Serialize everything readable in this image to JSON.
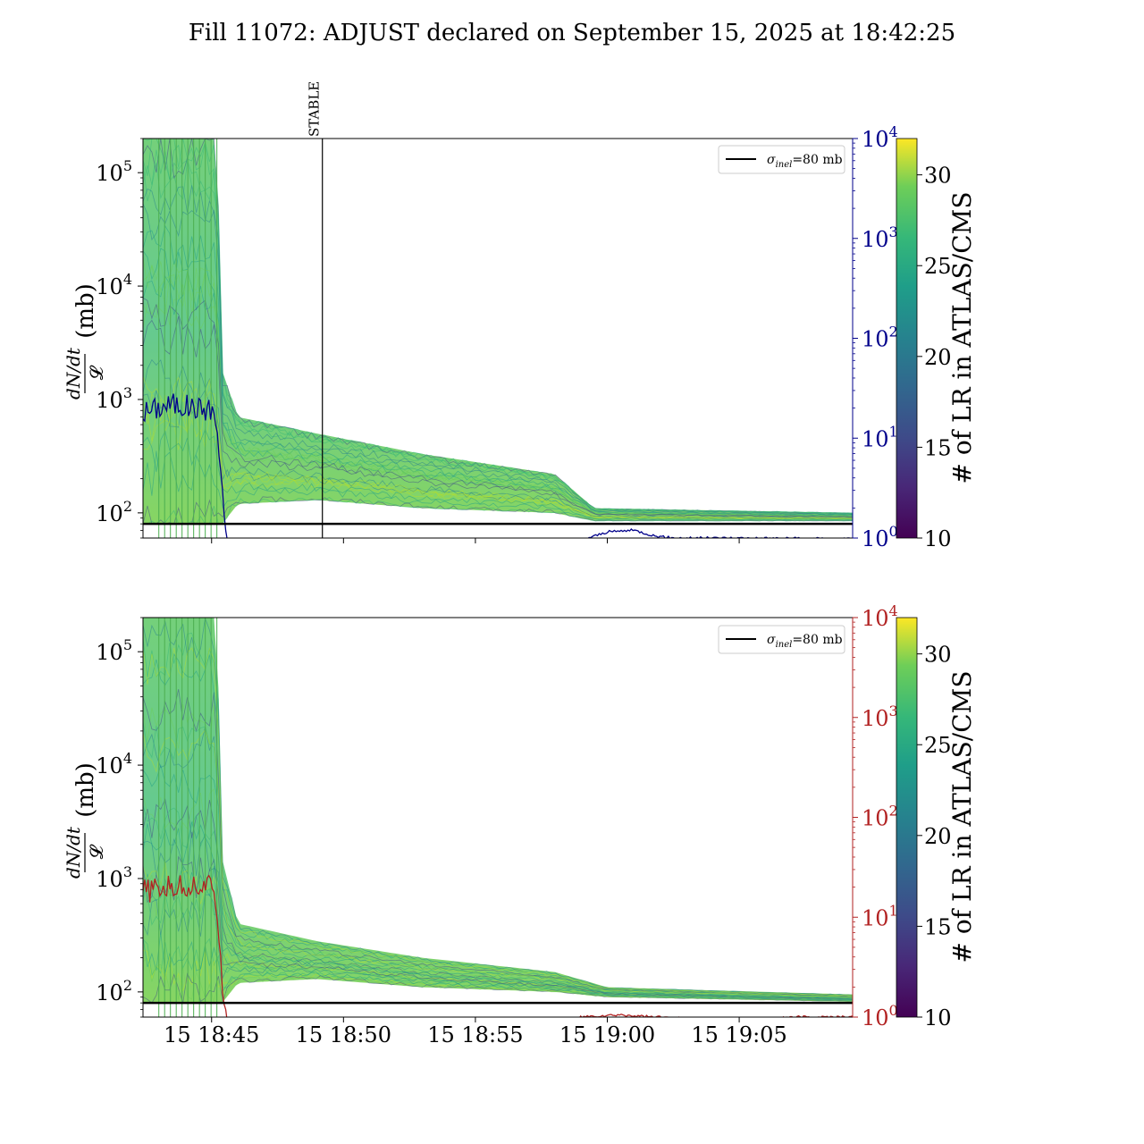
{
  "title": "Fill 11072: ADJUST declared on September 15, 2025 at 18:42:25",
  "chart_data": [
    {
      "type": "line",
      "panel": "top",
      "ylabel": "dN/dt / 𝓛 (mb)",
      "ylabel_parts": {
        "numerator": "dN/dt",
        "denominator": "𝓛",
        "unit": "(mb)"
      },
      "yscale": "log",
      "ylim": [
        60,
        200000
      ],
      "yticks": [
        {
          "label": "10",
          "exp": "2",
          "value": 100
        },
        {
          "label": "10",
          "exp": "3",
          "value": 1000
        },
        {
          "label": "10",
          "exp": "4",
          "value": 10000
        },
        {
          "label": "10",
          "exp": "5",
          "value": 100000
        }
      ],
      "xlim_minutes_from_1845": [
        -2.6,
        24.3
      ],
      "xticks": [],
      "right_axis": {
        "color": "#00008b",
        "yscale": "log",
        "ylim": [
          1,
          10000
        ],
        "yticks": [
          {
            "label": "10",
            "exp": "0"
          },
          {
            "label": "10",
            "exp": "1"
          },
          {
            "label": "10",
            "exp": "2"
          },
          {
            "label": "10",
            "exp": "3"
          },
          {
            "label": "10",
            "exp": "4"
          }
        ]
      },
      "reference_line": {
        "value": 80,
        "color": "#000000"
      },
      "legend": {
        "placement": "top-right",
        "label_sigma": "σ",
        "label_sub": "inel",
        "label_rest": "=80 mb"
      },
      "annotation": {
        "text": "STABLE",
        "x_minutes": 4.2
      },
      "colorbar": {
        "label": "# of LR in ATLAS/CMS",
        "range": [
          10,
          32
        ],
        "ticks": [
          "10",
          "15",
          "20",
          "25",
          "30"
        ],
        "colormap": "viridis"
      },
      "right_series": [
        {
          "t": -2.6,
          "v": 18
        },
        {
          "t": -1.5,
          "v": 22
        },
        {
          "t": -0.5,
          "v": 20
        },
        {
          "t": 0.1,
          "v": 19
        },
        {
          "t": 0.4,
          "v": 3.5
        },
        {
          "t": 0.5,
          "v": 1.4
        },
        {
          "t": 0.6,
          "v": 0.85
        },
        {
          "t": 1.5,
          "v": 0.8
        },
        {
          "t": 2.5,
          "v": 0.72
        },
        {
          "t": 3.5,
          "v": 0.7
        },
        {
          "t": 4.0,
          "v": 0.58
        },
        {
          "t": 4.5,
          "v": 0.5
        },
        {
          "t": 6.0,
          "v": 0.48
        },
        {
          "t": 7.5,
          "v": 0.45
        },
        {
          "t": 9.0,
          "v": 0.55
        },
        {
          "t": 10.0,
          "v": 0.58
        },
        {
          "t": 11.0,
          "v": 0.6
        },
        {
          "t": 12.0,
          "v": 0.7
        },
        {
          "t": 13.0,
          "v": 0.8
        },
        {
          "t": 14.0,
          "v": 0.95
        },
        {
          "t": 15.0,
          "v": 1.15
        },
        {
          "t": 16.0,
          "v": 1.2
        },
        {
          "t": 16.8,
          "v": 1.05
        },
        {
          "t": 17.5,
          "v": 1.0
        },
        {
          "t": 20.0,
          "v": 1.0
        },
        {
          "t": 24.3,
          "v": 0.98
        }
      ],
      "series_low_points": [
        {
          "t": -2.6,
          "v": 80
        },
        {
          "t": 0.4,
          "v": 80
        },
        {
          "t": 1.0,
          "v": 120
        },
        {
          "t": 4.0,
          "v": 130
        },
        {
          "t": 8.0,
          "v": 110
        },
        {
          "t": 13.0,
          "v": 100
        },
        {
          "t": 14.5,
          "v": 85
        },
        {
          "t": 24.3,
          "v": 85
        }
      ],
      "series_high_points": [
        {
          "t": -2.6,
          "v": 200000
        },
        {
          "t": 0.2,
          "v": 200000
        },
        {
          "t": 0.4,
          "v": 1800
        },
        {
          "t": 1.0,
          "v": 700
        },
        {
          "t": 4.0,
          "v": 500
        },
        {
          "t": 8.0,
          "v": 330
        },
        {
          "t": 13.0,
          "v": 220
        },
        {
          "t": 14.5,
          "v": 110
        },
        {
          "t": 24.3,
          "v": 100
        }
      ]
    },
    {
      "type": "line",
      "panel": "bottom",
      "ylabel": "dN/dt / 𝓛 (mb)",
      "ylabel_parts": {
        "numerator": "dN/dt",
        "denominator": "𝓛",
        "unit": "(mb)"
      },
      "yscale": "log",
      "ylim": [
        60,
        200000
      ],
      "yticks": [
        {
          "label": "10",
          "exp": "2",
          "value": 100
        },
        {
          "label": "10",
          "exp": "3",
          "value": 1000
        },
        {
          "label": "10",
          "exp": "4",
          "value": 10000
        },
        {
          "label": "10",
          "exp": "5",
          "value": 100000
        }
      ],
      "xlim_minutes_from_1845": [
        -2.6,
        24.3
      ],
      "xticks": [
        {
          "label": "15 18:45",
          "t": 0
        },
        {
          "label": "15 18:50",
          "t": 5
        },
        {
          "label": "15 18:55",
          "t": 10
        },
        {
          "label": "15 19:00",
          "t": 15
        },
        {
          "label": "15 19:05",
          "t": 20
        }
      ],
      "right_axis": {
        "color": "#b22222",
        "yscale": "log",
        "ylim": [
          1,
          10000
        ],
        "yticks": [
          {
            "label": "10",
            "exp": "0"
          },
          {
            "label": "10",
            "exp": "1"
          },
          {
            "label": "10",
            "exp": "2"
          },
          {
            "label": "10",
            "exp": "3"
          },
          {
            "label": "10",
            "exp": "4"
          }
        ]
      },
      "reference_line": {
        "value": 80,
        "color": "#000000"
      },
      "legend": {
        "placement": "top-right",
        "label_sigma": "σ",
        "label_sub": "inel",
        "label_rest": "=80 mb"
      },
      "colorbar": {
        "label": "# of LR in ATLAS/CMS",
        "range": [
          10,
          32
        ],
        "ticks": [
          "10",
          "15",
          "20",
          "25",
          "30"
        ],
        "colormap": "viridis"
      },
      "right_series": [
        {
          "t": -2.6,
          "v": 18
        },
        {
          "t": -1.5,
          "v": 20
        },
        {
          "t": -0.5,
          "v": 21
        },
        {
          "t": 0.1,
          "v": 20
        },
        {
          "t": 0.3,
          "v": 6.0
        },
        {
          "t": 0.4,
          "v": 2.0
        },
        {
          "t": 0.6,
          "v": 0.95
        },
        {
          "t": 1.5,
          "v": 0.65
        },
        {
          "t": 2.0,
          "v": 0.45
        },
        {
          "t": 3.0,
          "v": 0.55
        },
        {
          "t": 4.0,
          "v": 0.6
        },
        {
          "t": 4.5,
          "v": 0.45
        },
        {
          "t": 6.0,
          "v": 0.55
        },
        {
          "t": 8.0,
          "v": 0.6
        },
        {
          "t": 10.0,
          "v": 0.68
        },
        {
          "t": 12.0,
          "v": 0.75
        },
        {
          "t": 13.0,
          "v": 0.85
        },
        {
          "t": 14.0,
          "v": 1.0
        },
        {
          "t": 15.5,
          "v": 1.05
        },
        {
          "t": 17.5,
          "v": 0.98
        },
        {
          "t": 19.0,
          "v": 0.92
        },
        {
          "t": 21.0,
          "v": 0.95
        },
        {
          "t": 22.0,
          "v": 1.0
        },
        {
          "t": 24.3,
          "v": 1.0
        }
      ],
      "series_low_points": [
        {
          "t": -2.6,
          "v": 80
        },
        {
          "t": 0.4,
          "v": 80
        },
        {
          "t": 1.0,
          "v": 120
        },
        {
          "t": 4.0,
          "v": 130
        },
        {
          "t": 8.0,
          "v": 110
        },
        {
          "t": 13.0,
          "v": 100
        },
        {
          "t": 15.0,
          "v": 90
        },
        {
          "t": 24.3,
          "v": 82
        }
      ],
      "series_high_points": [
        {
          "t": -2.6,
          "v": 200000
        },
        {
          "t": 0.2,
          "v": 200000
        },
        {
          "t": 0.4,
          "v": 1500
        },
        {
          "t": 1.0,
          "v": 400
        },
        {
          "t": 4.0,
          "v": 280
        },
        {
          "t": 8.0,
          "v": 200
        },
        {
          "t": 13.0,
          "v": 150
        },
        {
          "t": 15.0,
          "v": 110
        },
        {
          "t": 24.3,
          "v": 95
        }
      ]
    }
  ]
}
